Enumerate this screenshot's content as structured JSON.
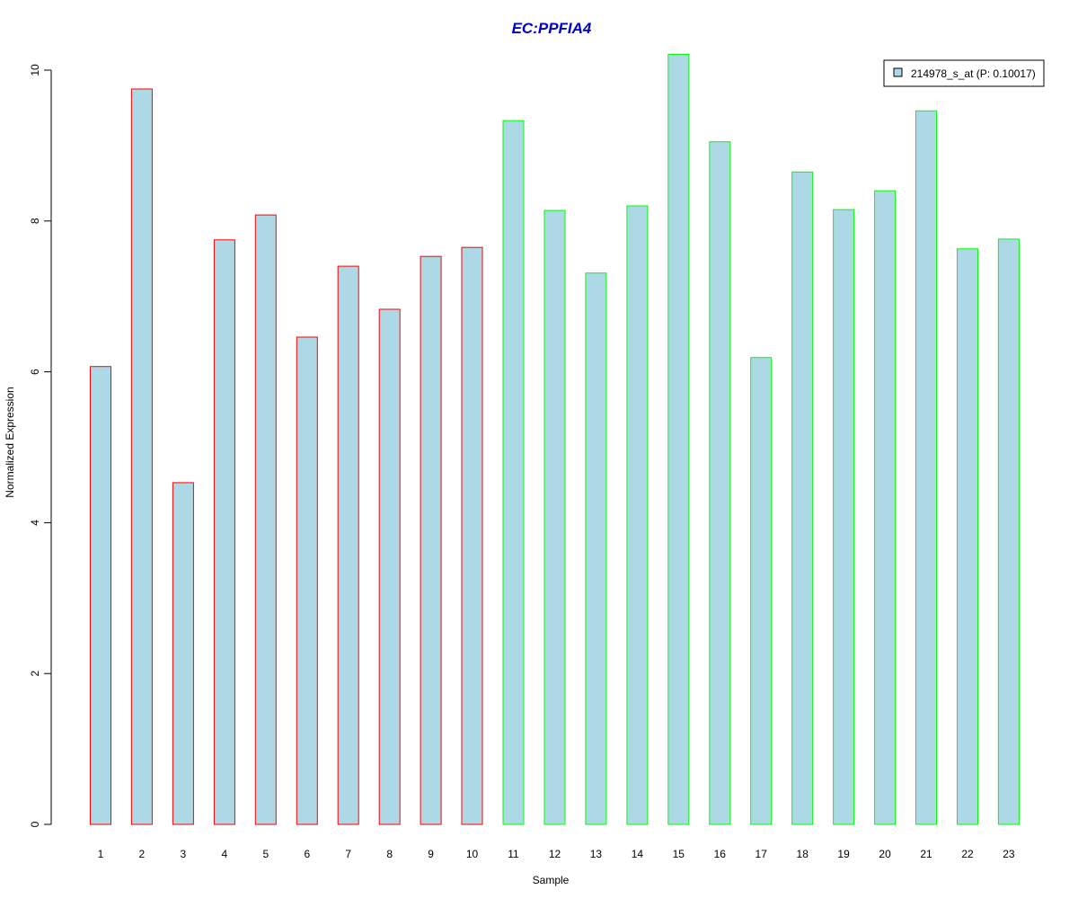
{
  "chart_data": {
    "type": "bar",
    "title": "EC:PPFIA4",
    "xlabel": "Sample",
    "ylabel": "Normalized Expression",
    "categories": [
      "1",
      "2",
      "3",
      "4",
      "5",
      "6",
      "7",
      "8",
      "9",
      "10",
      "11",
      "12",
      "13",
      "14",
      "15",
      "16",
      "17",
      "18",
      "19",
      "20",
      "21",
      "22",
      "23"
    ],
    "series": [
      {
        "name": "214978_s_at (P: 0.10017)",
        "values": [
          6.07,
          9.75,
          4.53,
          7.75,
          8.08,
          6.46,
          7.4,
          6.83,
          7.53,
          7.65,
          9.33,
          8.14,
          7.31,
          8.2,
          10.21,
          9.05,
          6.19,
          8.65,
          8.15,
          8.4,
          9.46,
          7.63,
          7.76
        ]
      }
    ],
    "group_border": [
      "red",
      "red",
      "red",
      "red",
      "red",
      "red",
      "red",
      "red",
      "red",
      "red",
      "green",
      "green",
      "green",
      "green",
      "green",
      "green",
      "green",
      "green",
      "green",
      "green",
      "green",
      "green",
      "green"
    ],
    "y_ticks": [
      "0",
      "2",
      "4",
      "6",
      "8",
      "10"
    ],
    "ylim": [
      0,
      10.21
    ],
    "legend_position": "top-right",
    "grid": false,
    "colors": {
      "bar_fill": "#ADD8E6",
      "red": "#FF0000",
      "green": "#00FF00",
      "title": "#0000CC",
      "axis": "#000000"
    }
  }
}
